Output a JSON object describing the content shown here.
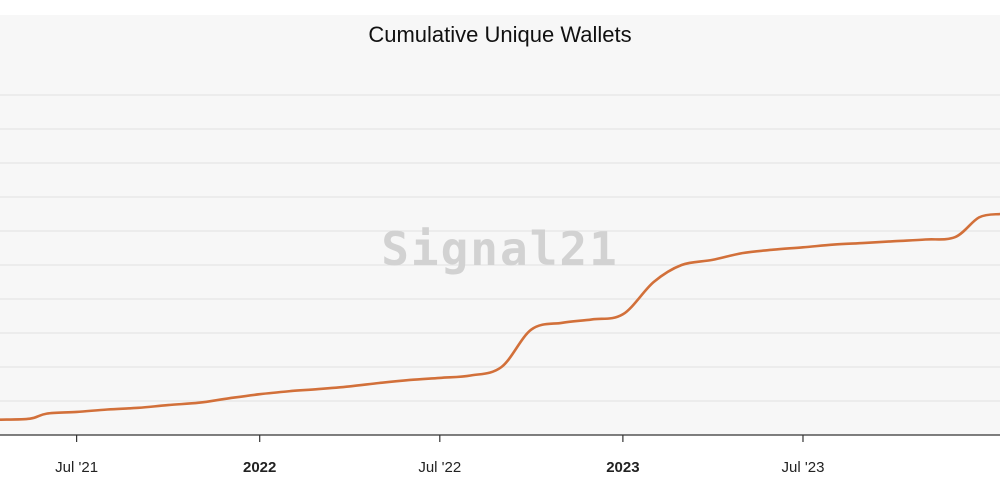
{
  "chart_data": {
    "type": "line",
    "title": "Cumulative Unique Wallets",
    "watermark": "Signal21",
    "line_color": "#d2703a",
    "x_ticks": [
      {
        "date": "2021-07-01",
        "label": "Jul '21",
        "bold": false
      },
      {
        "date": "2022-01-01",
        "label": "2022",
        "bold": true
      },
      {
        "date": "2022-07-01",
        "label": "Jul '22",
        "bold": false
      },
      {
        "date": "2023-01-01",
        "label": "2023",
        "bold": true
      },
      {
        "date": "2023-07-01",
        "label": "Jul '23",
        "bold": false
      }
    ],
    "xlim": [
      "2021-04-15",
      "2024-01-15"
    ],
    "ylim": [
      0,
      100
    ],
    "grid_values": [
      10,
      20,
      30,
      40,
      50,
      60,
      70,
      80,
      90,
      100
    ],
    "series": [
      {
        "values": [
          {
            "x": "2021-04-15",
            "y": 4.5
          },
          {
            "x": "2021-05-15",
            "y": 4.8
          },
          {
            "x": "2021-06-01",
            "y": 6.3
          },
          {
            "x": "2021-07-01",
            "y": 6.8
          },
          {
            "x": "2021-08-01",
            "y": 7.5
          },
          {
            "x": "2021-09-01",
            "y": 8.0
          },
          {
            "x": "2021-10-01",
            "y": 8.8
          },
          {
            "x": "2021-11-01",
            "y": 9.5
          },
          {
            "x": "2021-12-01",
            "y": 10.8
          },
          {
            "x": "2022-01-01",
            "y": 12.0
          },
          {
            "x": "2022-02-01",
            "y": 12.9
          },
          {
            "x": "2022-03-01",
            "y": 13.5
          },
          {
            "x": "2022-04-01",
            "y": 14.3
          },
          {
            "x": "2022-05-01",
            "y": 15.3
          },
          {
            "x": "2022-06-01",
            "y": 16.2
          },
          {
            "x": "2022-07-01",
            "y": 16.8
          },
          {
            "x": "2022-08-01",
            "y": 17.5
          },
          {
            "x": "2022-09-01",
            "y": 20.0
          },
          {
            "x": "2022-10-01",
            "y": 31.0
          },
          {
            "x": "2022-11-01",
            "y": 33.0
          },
          {
            "x": "2022-12-01",
            "y": 34.0
          },
          {
            "x": "2023-01-01",
            "y": 35.5
          },
          {
            "x": "2023-02-01",
            "y": 45.0
          },
          {
            "x": "2023-03-01",
            "y": 50.0
          },
          {
            "x": "2023-04-01",
            "y": 51.5
          },
          {
            "x": "2023-05-01",
            "y": 53.5
          },
          {
            "x": "2023-06-01",
            "y": 54.5
          },
          {
            "x": "2023-07-01",
            "y": 55.2
          },
          {
            "x": "2023-08-01",
            "y": 56.0
          },
          {
            "x": "2023-09-01",
            "y": 56.5
          },
          {
            "x": "2023-10-01",
            "y": 57.0
          },
          {
            "x": "2023-11-01",
            "y": 57.5
          },
          {
            "x": "2023-12-01",
            "y": 58.2
          },
          {
            "x": "2023-12-25",
            "y": 64.0
          },
          {
            "x": "2024-01-15",
            "y": 65.0
          }
        ]
      }
    ]
  }
}
